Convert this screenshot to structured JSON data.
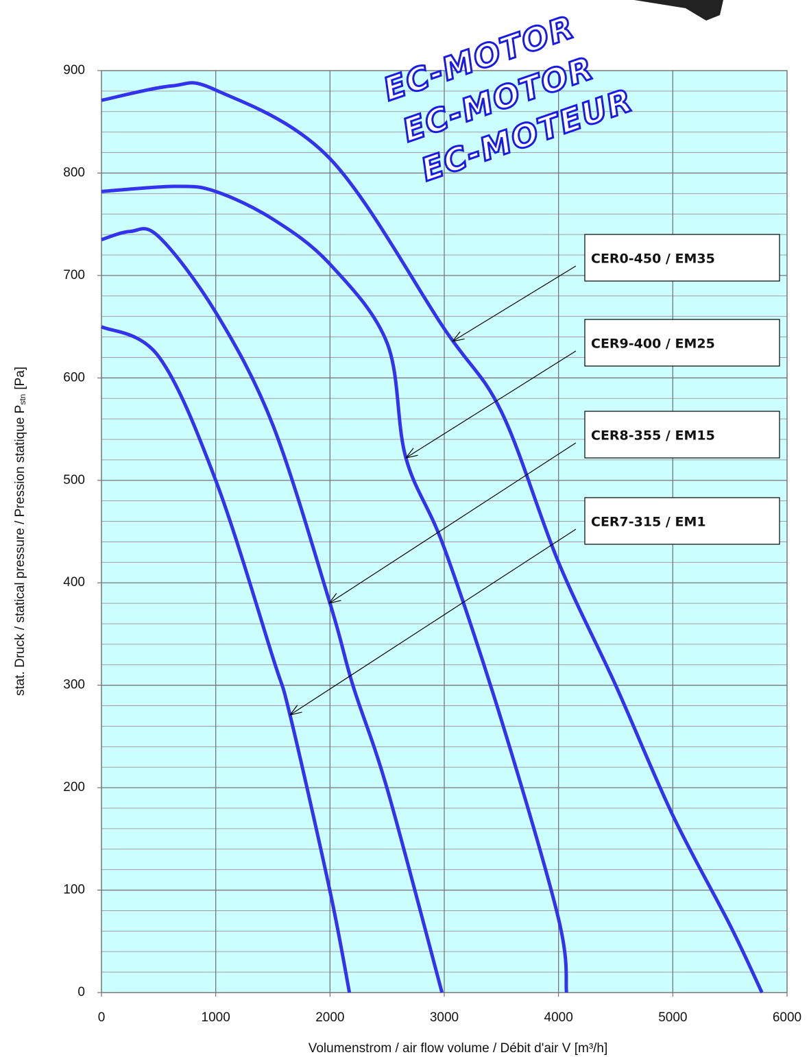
{
  "chart_data": {
    "type": "line",
    "xlabel": "Volumenstrom / air flow volume / Débit d'air V [m³/h]",
    "ylabel": "stat. Druck / statical pressure / Pression statique P",
    "ylabel_sub": "stn",
    "ylabel_unit": "[Pa]",
    "watermarks": [
      "EC-MOTOR",
      "EC-MOTOR",
      "EC-MOTEUR"
    ],
    "xlim": [
      0,
      6000
    ],
    "xticks": [
      0,
      1000,
      2000,
      3000,
      4000,
      5000,
      6000
    ],
    "ylim": [
      0,
      900
    ],
    "yticks": [
      0,
      100,
      200,
      300,
      400,
      500,
      600,
      700,
      800,
      900
    ],
    "y_minor_divisions": 5,
    "grid": true,
    "background": "#ccffff",
    "series": [
      {
        "name": "CER0-450 / EM35",
        "color": "#3333ee",
        "x": [
          0,
          612,
          1000,
          2000,
          3000,
          3500,
          4000,
          4500,
          5000,
          5500,
          5780
        ],
        "values": [
          871,
          885,
          881,
          814,
          648,
          567,
          420,
          300,
          173,
          66,
          0
        ]
      },
      {
        "name": "CER9-400 / EM25",
        "color": "#3333ee",
        "x": [
          0,
          650,
          1000,
          1500,
          2000,
          2500,
          2664,
          3000,
          3500,
          4000,
          4070
        ],
        "values": [
          782,
          787,
          782,
          755,
          711,
          634,
          522,
          434,
          266,
          72,
          0
        ]
      },
      {
        "name": "CER8-355 / EM15",
        "color": "#3333ee",
        "x": [
          0,
          250,
          500,
          1000,
          1500,
          2000,
          2200,
          2500,
          2980
        ],
        "values": [
          735,
          743,
          738,
          664,
          554,
          380,
          300,
          199,
          0
        ]
      },
      {
        "name": "CER7-315 / EM1",
        "color": "#3333ee",
        "x": [
          0,
          500,
          1000,
          1500,
          1650,
          2000,
          2170
        ],
        "values": [
          650,
          621,
          500,
          327,
          271,
          99,
          0
        ]
      }
    ]
  }
}
